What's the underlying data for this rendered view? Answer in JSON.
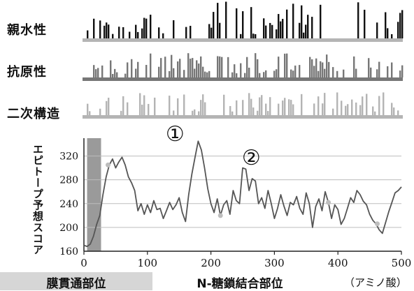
{
  "tracks": [
    {
      "label": "親水性",
      "color": "#111111"
    },
    {
      "label": "抗原性",
      "color": "#777777"
    },
    {
      "label": "二次構造",
      "color": "#b4b4b4"
    }
  ],
  "legend_items": {
    "transmembrane": "膜貫通部位",
    "nglyc": "N-糖鎖結合部位",
    "unit": "（アミノ酸）"
  },
  "chart_data": {
    "type": "line",
    "xlabel": "",
    "ylabel": "エピトープ予想スコア",
    "xlim": [
      0,
      500
    ],
    "ylim": [
      160,
      350
    ],
    "x_ticks": [
      0,
      100,
      200,
      300,
      400,
      500
    ],
    "y_ticks": [
      160,
      200,
      240,
      280,
      320
    ],
    "grid": "horizontal",
    "shaded_region": {
      "label": "膜貫通部位",
      "x_range": [
        5,
        27
      ]
    },
    "annotations": [
      {
        "text": "①",
        "x": 170,
        "y": 350
      },
      {
        "text": "②",
        "x": 290,
        "y": 310
      }
    ],
    "nglyc_sites": [
      38,
      215,
      385,
      462
    ],
    "series": [
      {
        "x": [
          0,
          5,
          10,
          15,
          20,
          25,
          30,
          35,
          40,
          45,
          50,
          55,
          60,
          65,
          70,
          75,
          80,
          85,
          90,
          95,
          100,
          105,
          110,
          115,
          120,
          125,
          130,
          135,
          140,
          145,
          150,
          155,
          160,
          165,
          170,
          175,
          180,
          185,
          190,
          195,
          200,
          205,
          210,
          215,
          220,
          225,
          230,
          235,
          240,
          245,
          250,
          255,
          260,
          265,
          270,
          275,
          280,
          285,
          290,
          295,
          300,
          305,
          310,
          315,
          320,
          325,
          330,
          335,
          340,
          345,
          350,
          355,
          360,
          365,
          370,
          375,
          380,
          385,
          390,
          395,
          400,
          405,
          410,
          415,
          420,
          425,
          430,
          435,
          440,
          445,
          450,
          455,
          460,
          465,
          470,
          475,
          480,
          485,
          490,
          495,
          500
        ],
        "y": [
          170,
          168,
          172,
          185,
          205,
          220,
          255,
          285,
          305,
          315,
          300,
          310,
          318,
          305,
          285,
          275,
          262,
          228,
          240,
          222,
          238,
          225,
          245,
          230,
          232,
          215,
          228,
          242,
          230,
          238,
          250,
          225,
          210,
          255,
          290,
          318,
          345,
          330,
          300,
          265,
          240,
          225,
          248,
          220,
          238,
          245,
          222,
          262,
          245,
          240,
          300,
          298,
          262,
          282,
          278,
          240,
          250,
          232,
          262,
          240,
          215,
          232,
          255,
          236,
          220,
          242,
          238,
          252,
          232,
          222,
          258,
          240,
          200,
          235,
          248,
          228,
          260,
          242,
          215,
          238,
          230,
          205,
          215,
          232,
          250,
          242,
          262,
          255,
          244,
          238,
          222,
          212,
          206,
          196,
          190,
          208,
          226,
          242,
          258,
          262,
          268
        ]
      }
    ]
  }
}
